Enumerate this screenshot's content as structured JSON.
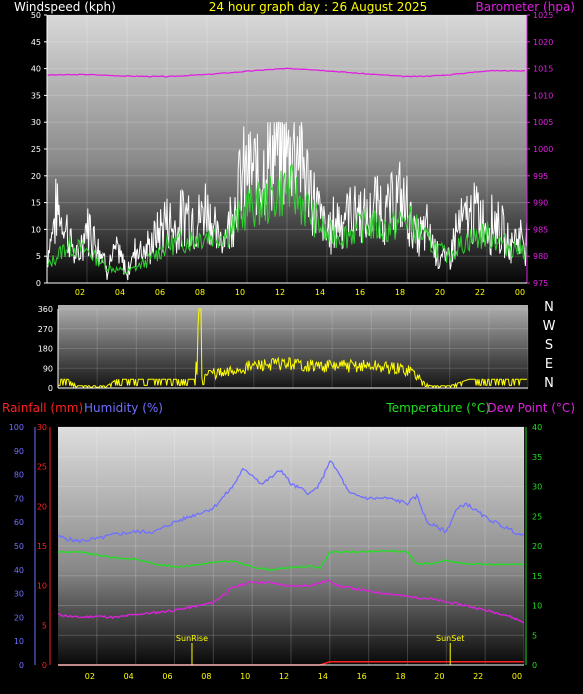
{
  "header": {
    "title": "24 hour graph day : 26 August 2025",
    "left_label": "Windspeed (kph)",
    "right_label": "Barometer (hpa)"
  },
  "colors": {
    "title": "#ffff00",
    "windspeed": "#ffffff",
    "windavg": "#30d030",
    "barometer": "#e020e0",
    "direction": "#ffff00",
    "rainfall": "#ff2020",
    "humidity": "#7070ff",
    "temperature": "#20e020",
    "dewpoint": "#e020e0",
    "axis_tick": "#ffff00",
    "compass": "#ffffff"
  },
  "bottom_header": {
    "rain_label": "Rainfall (mm)",
    "humidity_label": "Humidity (%)",
    "temp_label": "Temperature (°C)",
    "dew_label": "Dew Point (°C)"
  },
  "compass_labels": [
    "N",
    "W",
    "S",
    "E",
    "N"
  ],
  "events": {
    "sunrise": "SunRise",
    "sunset": "SunSet"
  },
  "chart_data": [
    {
      "type": "line",
      "name": "wind-barometer",
      "x_ticks": [
        "02",
        "04",
        "06",
        "08",
        "10",
        "12",
        "14",
        "16",
        "18",
        "20",
        "22",
        "00"
      ],
      "y_left": {
        "label": "Windspeed (kph)",
        "ticks": [
          "0",
          "5",
          "10",
          "15",
          "20",
          "25",
          "30",
          "35",
          "40",
          "45",
          "50"
        ],
        "range": [
          0,
          50
        ]
      },
      "y_right": {
        "label": "Barometer (hpa)",
        "ticks": [
          "975",
          "980",
          "985",
          "990",
          "995",
          "1000",
          "1005",
          "1010",
          "1015",
          "1020",
          "1025"
        ],
        "range": [
          975,
          1025
        ]
      },
      "x_range_hours": [
        0,
        24
      ],
      "series": [
        {
          "name": "Windspeed",
          "hours": [
            0,
            0.5,
            1,
            1.5,
            2,
            2.5,
            3,
            3.5,
            4,
            4.5,
            5,
            5.5,
            6,
            6.5,
            7,
            7.5,
            8,
            8.5,
            9,
            9.5,
            10,
            10.5,
            11,
            11.5,
            12,
            12.5,
            13,
            13.5,
            14,
            14.5,
            15,
            15.5,
            16,
            16.5,
            17,
            17.5,
            18,
            18.5,
            19,
            19.5,
            20,
            20.5,
            21,
            21.5,
            22,
            22.5,
            23,
            23.5,
            24
          ],
          "values": [
            5,
            14,
            10,
            4,
            11,
            8,
            3,
            6,
            2,
            7,
            6,
            9,
            12,
            10,
            14,
            11,
            15,
            8,
            10,
            17,
            21,
            20,
            23,
            25,
            24,
            27,
            19,
            14,
            9,
            12,
            13,
            14,
            11,
            15,
            13,
            16,
            14,
            8,
            10,
            6,
            4,
            10,
            12,
            13,
            11,
            12,
            7,
            9,
            8
          ]
        },
        {
          "name": "Windspeed average",
          "hours": [
            0,
            1,
            2,
            3,
            4,
            5,
            6,
            7,
            8,
            9,
            10,
            11,
            12,
            13,
            14,
            15,
            16,
            17,
            18,
            19,
            20,
            21,
            22,
            23,
            24
          ],
          "values": [
            3,
            7,
            6,
            3,
            2,
            4,
            7,
            8,
            9,
            9,
            14,
            15,
            18,
            14,
            9,
            9,
            11,
            10,
            12,
            8,
            5,
            8,
            9,
            7,
            6
          ]
        },
        {
          "name": "Barometer",
          "hours": [
            0,
            2,
            4,
            6,
            8,
            10,
            11,
            12,
            13,
            14,
            16,
            18,
            19,
            20,
            22,
            24
          ],
          "values": [
            1013.8,
            1013.9,
            1013.6,
            1013.5,
            1013.9,
            1014.5,
            1014.8,
            1015.0,
            1014.9,
            1014.6,
            1014.0,
            1013.5,
            1013.6,
            1013.8,
            1014.6,
            1014.6
          ]
        }
      ]
    },
    {
      "type": "line",
      "name": "wind-direction",
      "y_left": {
        "ticks": [
          "0",
          "90",
          "180",
          "270",
          "360"
        ],
        "range": [
          0,
          360
        ]
      },
      "series": [
        {
          "name": "Direction",
          "hours": [
            0,
            0.5,
            1,
            1.5,
            2,
            2.5,
            3,
            4,
            5,
            6,
            7,
            7.2,
            7.3,
            7.5,
            8,
            8.5,
            9,
            10,
            11,
            12,
            13,
            14,
            15,
            16,
            17,
            18,
            18.5,
            19,
            20,
            21,
            22,
            23,
            24
          ],
          "values": [
            40,
            40,
            10,
            10,
            10,
            10,
            40,
            40,
            40,
            40,
            40,
            360,
            40,
            60,
            70,
            60,
            80,
            100,
            110,
            110,
            100,
            100,
            100,
            100,
            90,
            80,
            40,
            10,
            10,
            40,
            40,
            40,
            40
          ]
        }
      ]
    },
    {
      "type": "line",
      "name": "temp-humidity",
      "y_left_outer": {
        "label": "Humidity (%)",
        "ticks": [
          "0",
          "10",
          "20",
          "30",
          "40",
          "50",
          "60",
          "70",
          "80",
          "90",
          "100"
        ],
        "range": [
          0,
          100
        ]
      },
      "y_left_inner": {
        "label": "Rainfall (mm)",
        "ticks": [
          "0",
          "5",
          "10",
          "15",
          "20",
          "25",
          "30"
        ],
        "range": [
          0,
          30
        ]
      },
      "y_right": {
        "label": "Temperature (°C)",
        "ticks": [
          "0",
          "5",
          "10",
          "15",
          "20",
          "25",
          "30",
          "35",
          "40"
        ],
        "range": [
          0,
          40
        ]
      },
      "series": [
        {
          "name": "Humidity",
          "hours": [
            0,
            1,
            2,
            3,
            4,
            5,
            6,
            7,
            8,
            9,
            9.5,
            10,
            10.5,
            11,
            11.5,
            12,
            12.5,
            13,
            13.5,
            14,
            14.5,
            15,
            16,
            17,
            18,
            18.5,
            19,
            20,
            20.5,
            21,
            22,
            23,
            24
          ],
          "values": [
            54,
            52,
            53,
            55,
            56,
            56,
            60,
            63,
            66,
            75,
            82,
            80,
            76,
            79,
            82,
            76,
            74,
            72,
            76,
            86,
            80,
            72,
            70,
            70,
            68,
            71,
            60,
            56,
            65,
            68,
            62,
            58,
            54
          ]
        },
        {
          "name": "Temperature",
          "hours": [
            0,
            1,
            2,
            3,
            4,
            5,
            6,
            7,
            8,
            9,
            10,
            11,
            12,
            13,
            13.5,
            14,
            15,
            16,
            17,
            18,
            18.5,
            19,
            20,
            21,
            22,
            23,
            24
          ],
          "values": [
            19,
            19,
            18.5,
            18,
            17.8,
            17,
            16.5,
            16.8,
            17.2,
            17.5,
            16.5,
            16,
            16.4,
            16.6,
            16.3,
            19,
            19,
            19,
            19.2,
            19,
            17,
            17,
            17.5,
            17,
            17,
            16.8,
            17
          ]
        },
        {
          "name": "Dew Point",
          "hours": [
            0,
            1,
            2,
            3,
            4,
            5,
            6,
            7,
            8,
            9,
            10,
            11,
            12,
            13,
            14,
            14.5,
            15,
            16,
            17,
            18,
            19,
            20,
            21,
            22,
            23,
            24
          ],
          "values": [
            8.5,
            8.0,
            8.2,
            8.0,
            8.5,
            8.8,
            9.2,
            9.8,
            10.5,
            13,
            14,
            13.8,
            13.2,
            13.4,
            14.2,
            13.2,
            13,
            12.4,
            12,
            11.5,
            11.2,
            10.6,
            10,
            9.2,
            8.5,
            7.2
          ]
        },
        {
          "name": "Rainfall",
          "hours": [
            0,
            13.5,
            14,
            24
          ],
          "values": [
            0,
            0,
            0.4,
            0.4
          ]
        }
      ],
      "events": [
        {
          "label": "SunRise",
          "hour": 6.9
        },
        {
          "label": "SunSet",
          "hour": 20.2
        }
      ]
    }
  ]
}
